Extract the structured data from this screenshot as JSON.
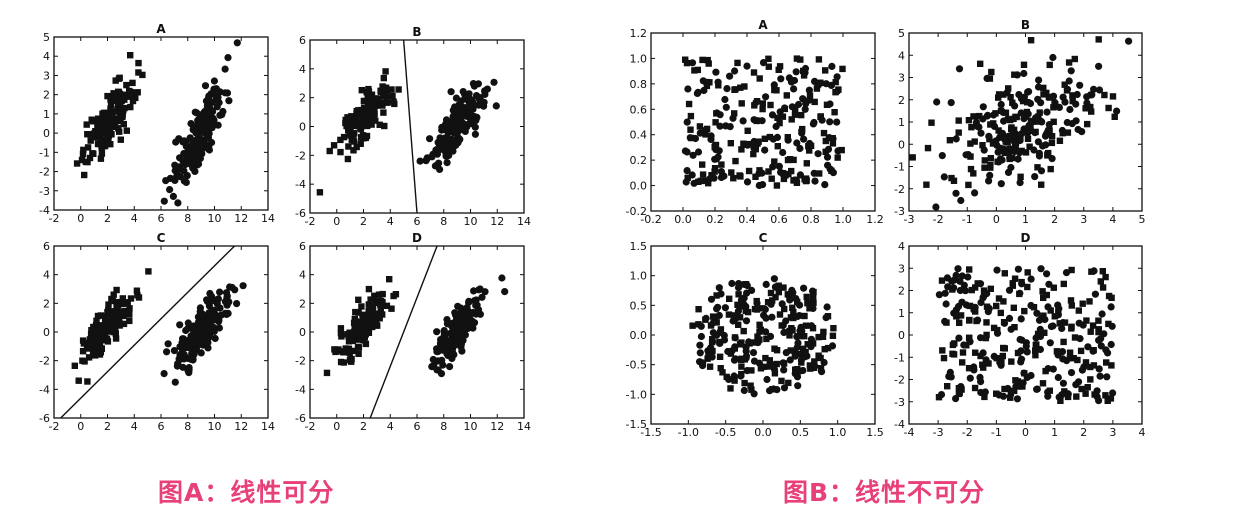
{
  "captions": {
    "left": "图A：线性可分",
    "right": "图B：线性不可分"
  },
  "colors": {
    "marks": "#111111",
    "caption": "#e8407a",
    "panel_bg": "#ffffff"
  },
  "chart_data": [
    {
      "id": "A-A",
      "group": "left",
      "type": "scatter",
      "title": "A",
      "xlim": [
        -2,
        14
      ],
      "ylim": [
        -4,
        5
      ],
      "xticks": [
        -2,
        0,
        2,
        4,
        6,
        8,
        10,
        12,
        14
      ],
      "yticks": [
        -4,
        -3,
        -2,
        -1,
        0,
        1,
        2,
        3,
        4,
        5
      ],
      "clusters": [
        {
          "marker": "square",
          "n": 140,
          "center": [
            2,
            0.5
          ],
          "spread": [
            1.0,
            1.2
          ],
          "corr": 0.8
        },
        {
          "marker": "circle",
          "n": 170,
          "center": [
            9,
            0
          ],
          "spread": [
            1.0,
            1.3
          ],
          "corr": 0.8
        }
      ],
      "line": null
    },
    {
      "id": "A-B",
      "group": "left",
      "type": "scatter",
      "title": "B",
      "xlim": [
        -2,
        14
      ],
      "ylim": [
        -6,
        6
      ],
      "xticks": [
        -2,
        0,
        2,
        4,
        6,
        8,
        10,
        12,
        14
      ],
      "yticks": [
        -6,
        -4,
        -2,
        0,
        2,
        4,
        6
      ],
      "clusters": [
        {
          "marker": "square",
          "n": 140,
          "center": [
            2,
            0.5
          ],
          "spread": [
            1.0,
            1.2
          ],
          "corr": 0.8
        },
        {
          "marker": "circle",
          "n": 170,
          "center": [
            9,
            0
          ],
          "spread": [
            1.0,
            1.3
          ],
          "corr": 0.8
        }
      ],
      "line": [
        [
          5,
          6
        ],
        [
          6,
          -6
        ]
      ]
    },
    {
      "id": "A-C",
      "group": "left",
      "type": "scatter",
      "title": "C",
      "xlim": [
        -2,
        14
      ],
      "ylim": [
        -6,
        6
      ],
      "xticks": [
        -2,
        0,
        2,
        4,
        6,
        8,
        10,
        12,
        14
      ],
      "yticks": [
        -6,
        -4,
        -2,
        0,
        2,
        4,
        6
      ],
      "clusters": [
        {
          "marker": "square",
          "n": 140,
          "center": [
            2,
            0.5
          ],
          "spread": [
            1.0,
            1.2
          ],
          "corr": 0.8
        },
        {
          "marker": "circle",
          "n": 170,
          "center": [
            9,
            0
          ],
          "spread": [
            1.0,
            1.3
          ],
          "corr": 0.8
        }
      ],
      "line": [
        [
          -1.5,
          -6
        ],
        [
          11.5,
          6
        ]
      ]
    },
    {
      "id": "A-D",
      "group": "left",
      "type": "scatter",
      "title": "D",
      "xlim": [
        -2,
        14
      ],
      "ylim": [
        -6,
        6
      ],
      "xticks": [
        -2,
        0,
        2,
        4,
        6,
        8,
        10,
        12,
        14
      ],
      "yticks": [
        -6,
        -4,
        -2,
        0,
        2,
        4,
        6
      ],
      "clusters": [
        {
          "marker": "square",
          "n": 140,
          "center": [
            2,
            0.5
          ],
          "spread": [
            1.0,
            1.2
          ],
          "corr": 0.8
        },
        {
          "marker": "circle",
          "n": 170,
          "center": [
            9,
            0
          ],
          "spread": [
            1.0,
            1.3
          ],
          "corr": 0.8
        }
      ],
      "line": [
        [
          2.5,
          -6
        ],
        [
          7.5,
          6
        ]
      ]
    },
    {
      "id": "B-A",
      "group": "right",
      "type": "scatter",
      "title": "A",
      "xlim": [
        -0.2,
        1.2
      ],
      "ylim": [
        -0.2,
        1.2
      ],
      "xticks": [
        -0.2,
        0.0,
        0.2,
        0.4,
        0.6,
        0.8,
        1.0,
        1.2
      ],
      "yticks": [
        -0.2,
        0.0,
        0.2,
        0.4,
        0.6,
        0.8,
        1.0,
        1.2
      ],
      "xticklabels": [
        "-0.2",
        "0.0",
        "0.2",
        "0.4",
        "0.6",
        "0.8",
        "1.0",
        "1.2"
      ],
      "yticklabels": [
        "-0.2",
        "0.0",
        "0.2",
        "0.4",
        "0.6",
        "0.8",
        "1.0",
        "1.2"
      ],
      "distribution": "uniform-box",
      "box": [
        0.0,
        1.0,
        0.0,
        1.0
      ],
      "n": 260,
      "markers": "square and circle mixed"
    },
    {
      "id": "B-B",
      "group": "right",
      "type": "scatter",
      "title": "B",
      "xlim": [
        -3,
        5
      ],
      "ylim": [
        -3,
        5
      ],
      "xticks": [
        -3,
        -2,
        -1,
        0,
        1,
        2,
        3,
        4,
        5
      ],
      "yticks": [
        -3,
        -2,
        -1,
        0,
        1,
        2,
        3,
        4,
        5
      ],
      "distribution": "correlated-gaussian",
      "center": [
        1,
        1
      ],
      "spread": [
        1.3,
        1.3
      ],
      "corr": 0.45,
      "n": 260,
      "markers": "square and circle mixed"
    },
    {
      "id": "B-C",
      "group": "right",
      "type": "scatter",
      "title": "C",
      "xlim": [
        -1.5,
        1.5
      ],
      "ylim": [
        -1.5,
        1.5
      ],
      "xticks": [
        -1.5,
        -1.0,
        -0.5,
        0.0,
        0.5,
        1.0,
        1.5
      ],
      "yticks": [
        -1.5,
        -1.0,
        -0.5,
        0.0,
        0.5,
        1.0,
        1.5
      ],
      "xticklabels": [
        "-1.5",
        "-1.0",
        "-0.5",
        "0.0",
        "0.5",
        "1.0",
        "1.5"
      ],
      "yticklabels": [
        "-1.5",
        "-1.0",
        "-0.5",
        "0.0",
        "0.5",
        "1.0",
        "1.5"
      ],
      "distribution": "uniform-disk",
      "radius": 1.0,
      "n": 260,
      "markers": "square and circle mixed"
    },
    {
      "id": "B-D",
      "group": "right",
      "type": "scatter",
      "title": "D",
      "xlim": [
        -4,
        4
      ],
      "ylim": [
        -4,
        4
      ],
      "xticks": [
        -4,
        -3,
        -2,
        -1,
        0,
        1,
        2,
        3,
        4
      ],
      "yticks": [
        -4,
        -3,
        -2,
        -1,
        0,
        1,
        2,
        3,
        4
      ],
      "distribution": "uniform-box",
      "box": [
        -3,
        3,
        -3,
        3
      ],
      "n": 300,
      "markers": "square and circle mixed"
    }
  ]
}
